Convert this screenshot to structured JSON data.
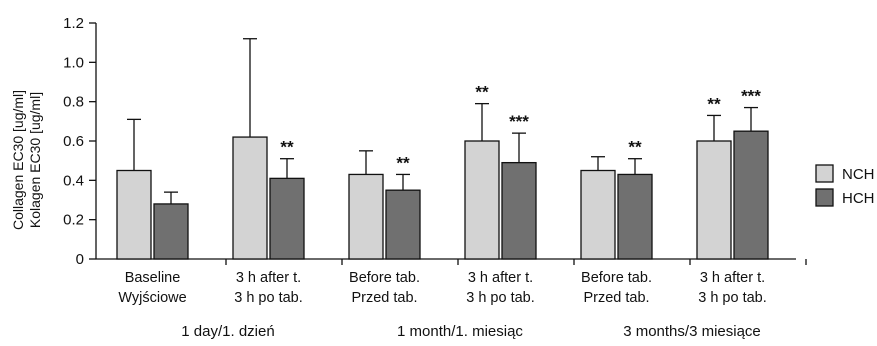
{
  "chart_data": {
    "type": "bar",
    "ylabel_lines": [
      "Collagen EC30 [ug/ml]",
      "Kolagen EC30 [ug/ml]"
    ],
    "ylim": [
      0,
      1.2
    ],
    "yticks": [
      "0",
      "0.2",
      "0.4",
      "0.6",
      "0.8",
      "1.0",
      "1.2"
    ],
    "categories": [
      [
        "Baseline",
        "Wyjściowe"
      ],
      [
        "3 h after t.",
        "3 h po tab."
      ],
      [
        "Before tab.",
        "Przed tab."
      ],
      [
        "3 h after t.",
        "3 h po tab."
      ],
      [
        "Before tab.",
        "Przed tab."
      ],
      [
        "3 h after t.",
        "3 h po tab."
      ]
    ],
    "groups": [
      "1 day/1. dzień",
      "1 month/1. miesiąc",
      "3 months/3 miesiące"
    ],
    "series": [
      {
        "name": "NCH",
        "color": "#d3d3d3",
        "values": [
          0.45,
          0.62,
          0.43,
          0.6,
          0.45,
          0.6
        ],
        "error_upper": [
          0.71,
          1.12,
          0.55,
          0.79,
          0.52,
          0.73
        ],
        "significance": [
          "",
          "",
          "",
          "**",
          "",
          "**"
        ]
      },
      {
        "name": "HCH",
        "color": "#707070",
        "values": [
          0.28,
          0.41,
          0.35,
          0.49,
          0.43,
          0.65
        ],
        "error_upper": [
          0.34,
          0.51,
          0.43,
          0.64,
          0.51,
          0.77
        ],
        "significance": [
          "",
          "**",
          "**",
          "***",
          "**",
          "***"
        ]
      }
    ],
    "legend_position": "right",
    "grid": false
  }
}
